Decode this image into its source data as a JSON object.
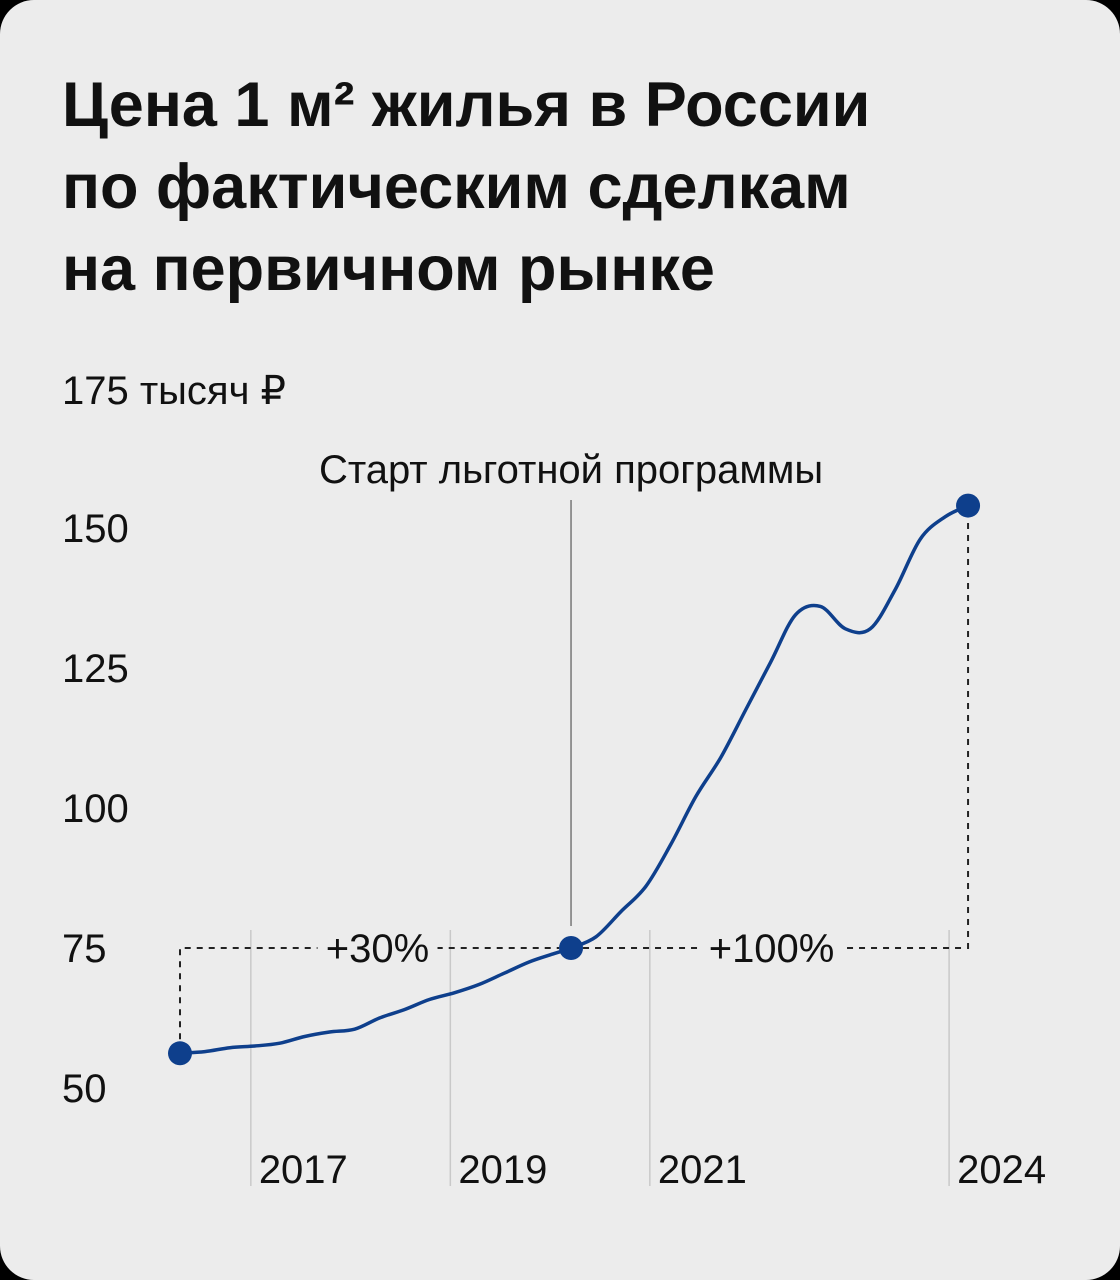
{
  "title_lines": [
    "Цена 1 м² жилья в России",
    "по фактическим сделкам",
    "на первичном рынке"
  ],
  "chart_data": {
    "type": "line",
    "title": "Цена 1 м² жилья в России по фактическим сделкам на первичном рынке",
    "y_unit_label": "175 тысяч ₽",
    "y_ticks": [
      150,
      125,
      100,
      75,
      50
    ],
    "x_ticks": [
      "2017",
      "2019",
      "2021",
      "2024"
    ],
    "x_tick_values": [
      2016.71,
      2018.71,
      2020.71,
      2023.71
    ],
    "xlim": [
      2016,
      2024.1
    ],
    "ylim": [
      50,
      175
    ],
    "grid": "vertical",
    "color": "#0e3f8c",
    "series": [
      {
        "x": [
          2016.0,
          2016.25,
          2016.5,
          2016.75,
          2017.0,
          2017.25,
          2017.5,
          2017.75,
          2018.0,
          2018.25,
          2018.5,
          2018.75,
          2019.0,
          2019.25,
          2019.5,
          2019.75,
          2019.92,
          2020.17,
          2020.42,
          2020.67,
          2020.92,
          2021.17,
          2021.42,
          2021.67,
          2021.92,
          2022.17,
          2022.42,
          2022.67,
          2022.92,
          2023.17,
          2023.42,
          2023.67,
          2023.9
        ],
        "y": [
          56.2,
          56.5,
          57.2,
          57.5,
          58.0,
          59.2,
          60.0,
          60.5,
          62.5,
          64.0,
          65.8,
          67.0,
          68.5,
          70.5,
          72.5,
          74.0,
          75.0,
          77.0,
          81.5,
          86.0,
          93.5,
          102.0,
          109.0,
          117.5,
          126.0,
          134.5,
          136.0,
          132.0,
          132.0,
          139.0,
          148.0,
          152.0,
          154.0
        ]
      }
    ],
    "points": [
      {
        "x": 2016.0,
        "y": 56.2
      },
      {
        "x": 2019.92,
        "y": 75.0
      },
      {
        "x": 2023.9,
        "y": 154.0
      }
    ],
    "annotations": {
      "program_label": "Старт льготной программы",
      "program_x": 2019.92,
      "growth_before": "+30%",
      "growth_after": "+100%",
      "baseline_y": 75
    }
  }
}
